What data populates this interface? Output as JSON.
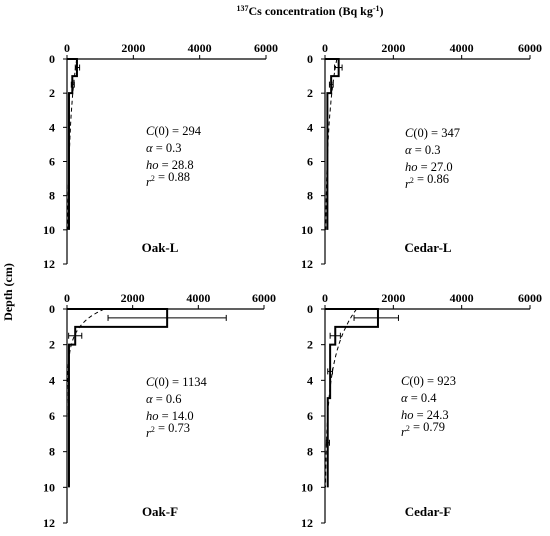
{
  "figure": {
    "x_axis_title_prefix": "137",
    "x_axis_title": "Cs concentration (Bq kg",
    "x_axis_title_sup": "-1",
    "x_axis_title_suffix": ")",
    "y_axis_title": "Depth (cm)"
  },
  "chart_data": [
    {
      "type": "line",
      "panel": "Oak-L",
      "label": "Oak-L",
      "xlim": [
        0,
        6000
      ],
      "ylim": [
        0,
        12
      ],
      "y_inverted": true,
      "x_ticks": [
        0,
        2000,
        4000,
        6000
      ],
      "y_ticks": [
        0,
        2,
        4,
        6,
        8,
        10,
        12
      ],
      "measured_profile": [
        {
          "depth_top": 0,
          "depth_bottom": 1,
          "value": 300
        },
        {
          "depth_top": 1,
          "depth_bottom": 2,
          "value": 160
        },
        {
          "depth_top": 2,
          "depth_bottom": 10,
          "value": 60
        }
      ],
      "error_bars": [
        {
          "depth": 0.5,
          "low": 250,
          "high": 380
        },
        {
          "depth": 1.5,
          "low": 130,
          "high": 220
        }
      ],
      "fitted_curve": {
        "C0": 294,
        "alpha": 0.3,
        "h0": 28.8
      },
      "params": [
        {
          "name": "C(0)",
          "value": "294"
        },
        {
          "name": "α",
          "value": "0.3"
        },
        {
          "name": "ho",
          "value": "28.8"
        },
        {
          "name": "r2",
          "value": "0.88"
        }
      ]
    },
    {
      "type": "line",
      "panel": "Cedar-L",
      "label": "Cedar-L",
      "xlim": [
        0,
        6000
      ],
      "ylim": [
        0,
        12
      ],
      "y_inverted": true,
      "x_ticks": [
        0,
        2000,
        4000,
        6000
      ],
      "y_ticks": [
        0,
        2,
        4,
        6,
        8,
        10,
        12
      ],
      "measured_profile": [
        {
          "depth_top": 0,
          "depth_bottom": 1,
          "value": 400
        },
        {
          "depth_top": 1,
          "depth_bottom": 2,
          "value": 180
        },
        {
          "depth_top": 2,
          "depth_bottom": 10,
          "value": 70
        }
      ],
      "error_bars": [
        {
          "depth": 0.5,
          "low": 280,
          "high": 500
        },
        {
          "depth": 1.5,
          "low": 130,
          "high": 240
        }
      ],
      "fitted_curve": {
        "C0": 347,
        "alpha": 0.3,
        "h0": 27.0
      },
      "params": [
        {
          "name": "C(0)",
          "value": "347"
        },
        {
          "name": "α",
          "value": "0.3"
        },
        {
          "name": "ho",
          "value": "27.0"
        },
        {
          "name": "r2",
          "value": "0.86"
        }
      ]
    },
    {
      "type": "line",
      "panel": "Oak-F",
      "label": "Oak-F",
      "xlim": [
        0,
        6000
      ],
      "ylim": [
        0,
        12
      ],
      "y_inverted": true,
      "x_ticks": [
        0,
        2000,
        4000,
        6000
      ],
      "y_ticks": [
        0,
        2,
        4,
        6,
        8,
        10,
        12
      ],
      "measured_profile": [
        {
          "depth_top": 0,
          "depth_bottom": 1,
          "value": 3050
        },
        {
          "depth_top": 1,
          "depth_bottom": 2,
          "value": 250
        },
        {
          "depth_top": 2,
          "depth_bottom": 10,
          "value": 60
        }
      ],
      "error_bars": [
        {
          "depth": 0.5,
          "low": 1250,
          "high": 4850
        },
        {
          "depth": 1.5,
          "low": 50,
          "high": 450
        }
      ],
      "fitted_curve": {
        "C0": 1134,
        "alpha": 0.6,
        "h0": 14.0
      },
      "params": [
        {
          "name": "C(0)",
          "value": "1134"
        },
        {
          "name": "α",
          "value": "0.6"
        },
        {
          "name": "ho",
          "value": "14.0"
        },
        {
          "name": "r2",
          "value": "0.73"
        }
      ]
    },
    {
      "type": "line",
      "panel": "Cedar-F",
      "label": "Cedar-F",
      "xlim": [
        0,
        6000
      ],
      "ylim": [
        0,
        12
      ],
      "y_inverted": true,
      "x_ticks": [
        0,
        2000,
        4000,
        6000
      ],
      "y_ticks": [
        0,
        2,
        4,
        6,
        8,
        10,
        12
      ],
      "measured_profile": [
        {
          "depth_top": 0,
          "depth_bottom": 1,
          "value": 1550
        },
        {
          "depth_top": 1,
          "depth_bottom": 2,
          "value": 300
        },
        {
          "depth_top": 2,
          "depth_bottom": 5,
          "value": 150
        },
        {
          "depth_top": 5,
          "depth_bottom": 10,
          "value": 80
        }
      ],
      "error_bars": [
        {
          "depth": 0.5,
          "low": 850,
          "high": 2150
        },
        {
          "depth": 1.5,
          "low": 150,
          "high": 450
        },
        {
          "depth": 3.5,
          "low": 80,
          "high": 220
        },
        {
          "depth": 7.5,
          "low": 40,
          "high": 130
        }
      ],
      "fitted_curve": {
        "C0": 923,
        "alpha": 0.4,
        "h0": 24.3
      },
      "params": [
        {
          "name": "C(0)",
          "value": "923"
        },
        {
          "name": "α",
          "value": "0.4"
        },
        {
          "name": "ho",
          "value": "24.3"
        },
        {
          "name": "r2",
          "value": "0.79"
        }
      ]
    }
  ]
}
